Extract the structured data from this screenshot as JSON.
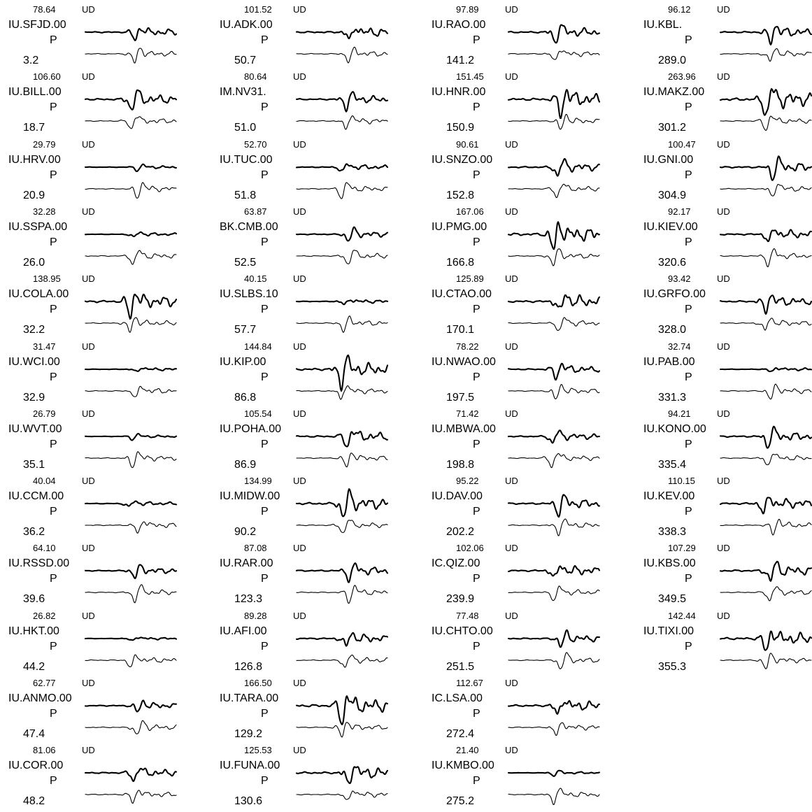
{
  "chart_data": {
    "type": "line",
    "columns": [
      [
        {
          "station": "IU.SFJD.00",
          "amplitude": "78.64",
          "component": "UD",
          "phase": "P",
          "azimuth": "3.2"
        },
        {
          "station": "IU.BILL.00",
          "amplitude": "106.60",
          "component": "UD",
          "phase": "P",
          "azimuth": "18.7"
        },
        {
          "station": "IU.HRV.00",
          "amplitude": "29.79",
          "component": "UD",
          "phase": "P",
          "azimuth": "20.9"
        },
        {
          "station": "IU.SSPA.00",
          "amplitude": "32.28",
          "component": "UD",
          "phase": "P",
          "azimuth": "26.0"
        },
        {
          "station": "IU.COLA.00",
          "amplitude": "138.95",
          "component": "UD",
          "phase": "P",
          "azimuth": "32.2"
        },
        {
          "station": "IU.WCI.00",
          "amplitude": "31.47",
          "component": "UD",
          "phase": "P",
          "azimuth": "32.9"
        },
        {
          "station": "IU.WVT.00",
          "amplitude": "26.79",
          "component": "UD",
          "phase": "P",
          "azimuth": "35.1"
        },
        {
          "station": "IU.CCM.00",
          "amplitude": "40.04",
          "component": "UD",
          "phase": "P",
          "azimuth": "36.2"
        },
        {
          "station": "IU.RSSD.00",
          "amplitude": "64.10",
          "component": "UD",
          "phase": "P",
          "azimuth": "39.6"
        },
        {
          "station": "IU.HKT.00",
          "amplitude": "26.82",
          "component": "UD",
          "phase": "P",
          "azimuth": "44.2"
        },
        {
          "station": "IU.ANMO.00",
          "amplitude": "62.77",
          "component": "UD",
          "phase": "P",
          "azimuth": "47.4"
        },
        {
          "station": "IU.COR.00",
          "amplitude": "81.06",
          "component": "UD",
          "phase": "P",
          "azimuth": "48.2"
        }
      ],
      [
        {
          "station": "IU.ADK.00",
          "amplitude": "101.52",
          "component": "UD",
          "phase": "P",
          "azimuth": "50.7"
        },
        {
          "station": "IM.NV31.",
          "amplitude": "80.64",
          "component": "UD",
          "phase": "P",
          "azimuth": "51.0"
        },
        {
          "station": "IU.TUC.00",
          "amplitude": "52.70",
          "component": "UD",
          "phase": "P",
          "azimuth": "51.8"
        },
        {
          "station": "BK.CMB.00",
          "amplitude": "63.87",
          "component": "UD",
          "phase": "P",
          "azimuth": "52.5"
        },
        {
          "station": "IU.SLBS.10",
          "amplitude": "40.15",
          "component": "UD",
          "phase": "P",
          "azimuth": "57.7"
        },
        {
          "station": "IU.KIP.00",
          "amplitude": "144.84",
          "component": "UD",
          "phase": "P",
          "azimuth": "86.8"
        },
        {
          "station": "IU.POHA.00",
          "amplitude": "105.54",
          "component": "UD",
          "phase": "P",
          "azimuth": "86.9"
        },
        {
          "station": "IU.MIDW.00",
          "amplitude": "134.99",
          "component": "UD",
          "phase": "P",
          "azimuth": "90.2"
        },
        {
          "station": "IU.RAR.00",
          "amplitude": "87.08",
          "component": "UD",
          "phase": "P",
          "azimuth": "123.3"
        },
        {
          "station": "IU.AFI.00",
          "amplitude": "89.28",
          "component": "UD",
          "phase": "P",
          "azimuth": "126.8"
        },
        {
          "station": "IU.TARA.00",
          "amplitude": "166.50",
          "component": "UD",
          "phase": "P",
          "azimuth": "129.2"
        },
        {
          "station": "IU.FUNA.00",
          "amplitude": "125.53",
          "component": "UD",
          "phase": "P",
          "azimuth": "130.6"
        }
      ],
      [
        {
          "station": "IU.RAO.00",
          "amplitude": "97.89",
          "component": "UD",
          "phase": "P",
          "azimuth": "141.2"
        },
        {
          "station": "IU.HNR.00",
          "amplitude": "151.45",
          "component": "UD",
          "phase": "P",
          "azimuth": "150.9"
        },
        {
          "station": "IU.SNZO.00",
          "amplitude": "90.61",
          "component": "UD",
          "phase": "P",
          "azimuth": "152.8"
        },
        {
          "station": "IU.PMG.00",
          "amplitude": "167.06",
          "component": "UD",
          "phase": "P",
          "azimuth": "166.8"
        },
        {
          "station": "IU.CTAO.00",
          "amplitude": "125.89",
          "component": "UD",
          "phase": "P",
          "azimuth": "170.1"
        },
        {
          "station": "IU.NWAO.00",
          "amplitude": "78.22",
          "component": "UD",
          "phase": "P",
          "azimuth": "197.5"
        },
        {
          "station": "IU.MBWA.00",
          "amplitude": "71.42",
          "component": "UD",
          "phase": "P",
          "azimuth": "198.8"
        },
        {
          "station": "IU.DAV.00",
          "amplitude": "95.22",
          "component": "UD",
          "phase": "P",
          "azimuth": "202.2"
        },
        {
          "station": "IC.QIZ.00",
          "amplitude": "102.06",
          "component": "UD",
          "phase": "P",
          "azimuth": "239.9"
        },
        {
          "station": "IU.CHTO.00",
          "amplitude": "77.48",
          "component": "UD",
          "phase": "P",
          "azimuth": "251.5"
        },
        {
          "station": "IC.LSA.00",
          "amplitude": "112.67",
          "component": "UD",
          "phase": "P",
          "azimuth": "272.4"
        },
        {
          "station": "IU.KMBO.00",
          "amplitude": "21.40",
          "component": "UD",
          "phase": "P",
          "azimuth": "275.2"
        }
      ],
      [
        {
          "station": "IU.KBL.",
          "amplitude": "96.12",
          "component": "UD",
          "phase": "P",
          "azimuth": "289.0"
        },
        {
          "station": "IU.MAKZ.00",
          "amplitude": "263.96",
          "component": "UD",
          "phase": "P",
          "azimuth": "301.2"
        },
        {
          "station": "IU.GNI.00",
          "amplitude": "100.47",
          "component": "UD",
          "phase": "P",
          "azimuth": "304.9"
        },
        {
          "station": "IU.KIEV.00",
          "amplitude": "92.17",
          "component": "UD",
          "phase": "P",
          "azimuth": "320.6"
        },
        {
          "station": "IU.GRFO.00",
          "amplitude": "93.42",
          "component": "UD",
          "phase": "P",
          "azimuth": "328.0"
        },
        {
          "station": "IU.PAB.00",
          "amplitude": "32.74",
          "component": "UD",
          "phase": "P",
          "azimuth": "331.3"
        },
        {
          "station": "IU.KONO.00",
          "amplitude": "94.21",
          "component": "UD",
          "phase": "P",
          "azimuth": "335.4"
        },
        {
          "station": "IU.KEV.00",
          "amplitude": "110.15",
          "component": "UD",
          "phase": "P",
          "azimuth": "338.3"
        },
        {
          "station": "IU.KBS.00",
          "amplitude": "107.29",
          "component": "UD",
          "phase": "P",
          "azimuth": "349.5"
        },
        {
          "station": "IU.TIXI.00",
          "amplitude": "142.44",
          "component": "UD",
          "phase": "P",
          "azimuth": "355.3"
        }
      ]
    ]
  }
}
